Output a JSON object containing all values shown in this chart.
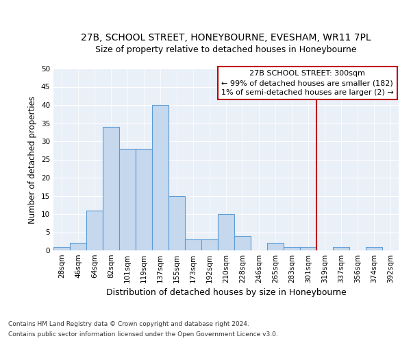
{
  "title": "27B, SCHOOL STREET, HONEYBOURNE, EVESHAM, WR11 7PL",
  "subtitle": "Size of property relative to detached houses in Honeybourne",
  "xlabel": "Distribution of detached houses by size in Honeybourne",
  "ylabel": "Number of detached properties",
  "categories": [
    "28sqm",
    "46sqm",
    "64sqm",
    "82sqm",
    "101sqm",
    "119sqm",
    "137sqm",
    "155sqm",
    "173sqm",
    "192sqm",
    "210sqm",
    "228sqm",
    "246sqm",
    "265sqm",
    "283sqm",
    "301sqm",
    "319sqm",
    "337sqm",
    "356sqm",
    "374sqm",
    "392sqm"
  ],
  "values": [
    1,
    2,
    11,
    34,
    28,
    28,
    40,
    15,
    3,
    3,
    10,
    4,
    0,
    2,
    1,
    1,
    0,
    1,
    0,
    1,
    0
  ],
  "bar_color": "#c5d8ed",
  "bar_edge_color": "#5b9bd5",
  "vline_pos": 15.5,
  "vline_color": "#c00000",
  "ylim": [
    0,
    50
  ],
  "yticks": [
    0,
    5,
    10,
    15,
    20,
    25,
    30,
    35,
    40,
    45,
    50
  ],
  "annotation_text": "27B SCHOOL STREET: 300sqm\n← 99% of detached houses are smaller (182)\n1% of semi-detached houses are larger (2) →",
  "annotation_box_facecolor": "#ffffff",
  "annotation_box_edgecolor": "#c00000",
  "bg_color": "#eaf0f8",
  "grid_color": "#ffffff",
  "footer_line1": "Contains HM Land Registry data © Crown copyright and database right 2024.",
  "footer_line2": "Contains public sector information licensed under the Open Government Licence v3.0.",
  "title_fontsize": 10,
  "subtitle_fontsize": 9,
  "ylabel_fontsize": 8.5,
  "xlabel_fontsize": 9,
  "tick_fontsize": 7.5,
  "annotation_fontsize": 8,
  "footer_fontsize": 6.5
}
